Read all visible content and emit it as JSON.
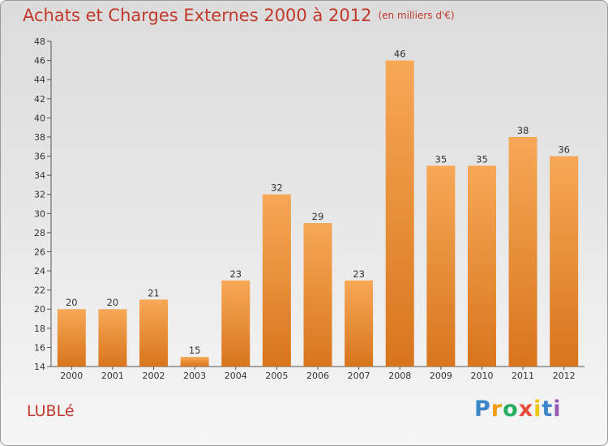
{
  "title": "Achats et Charges Externes 2000 à 2012",
  "subtitle": "(en milliers d'€)",
  "commune": "LUBLé",
  "logo": {
    "letters": [
      "P",
      "r",
      "o",
      "x",
      "i",
      "t",
      "i"
    ],
    "colors": [
      "#3a86c8",
      "#f39c12",
      "#27ae60",
      "#e74c3c",
      "#f1c40f",
      "#3a86c8",
      "#9b59b6"
    ]
  },
  "colors": {
    "bar_top": "#f7a857",
    "bar_bottom": "#d8751d",
    "title": "#c0392b"
  },
  "chart_data": {
    "type": "bar",
    "categories": [
      "2000",
      "2001",
      "2002",
      "2003",
      "2004",
      "2005",
      "2006",
      "2007",
      "2008",
      "2009",
      "2010",
      "2011",
      "2012"
    ],
    "values": [
      20,
      20,
      21,
      15,
      23,
      32,
      29,
      23,
      46,
      35,
      35,
      38,
      36
    ],
    "title": "Achats et Charges Externes 2000 à 2012",
    "xlabel": "",
    "ylabel": "",
    "ylim": [
      14,
      48
    ],
    "yticks": [
      14,
      16,
      18,
      20,
      22,
      24,
      26,
      28,
      30,
      32,
      34,
      36,
      38,
      40,
      42,
      44,
      46,
      48
    ],
    "grid": false,
    "legend": "none"
  }
}
